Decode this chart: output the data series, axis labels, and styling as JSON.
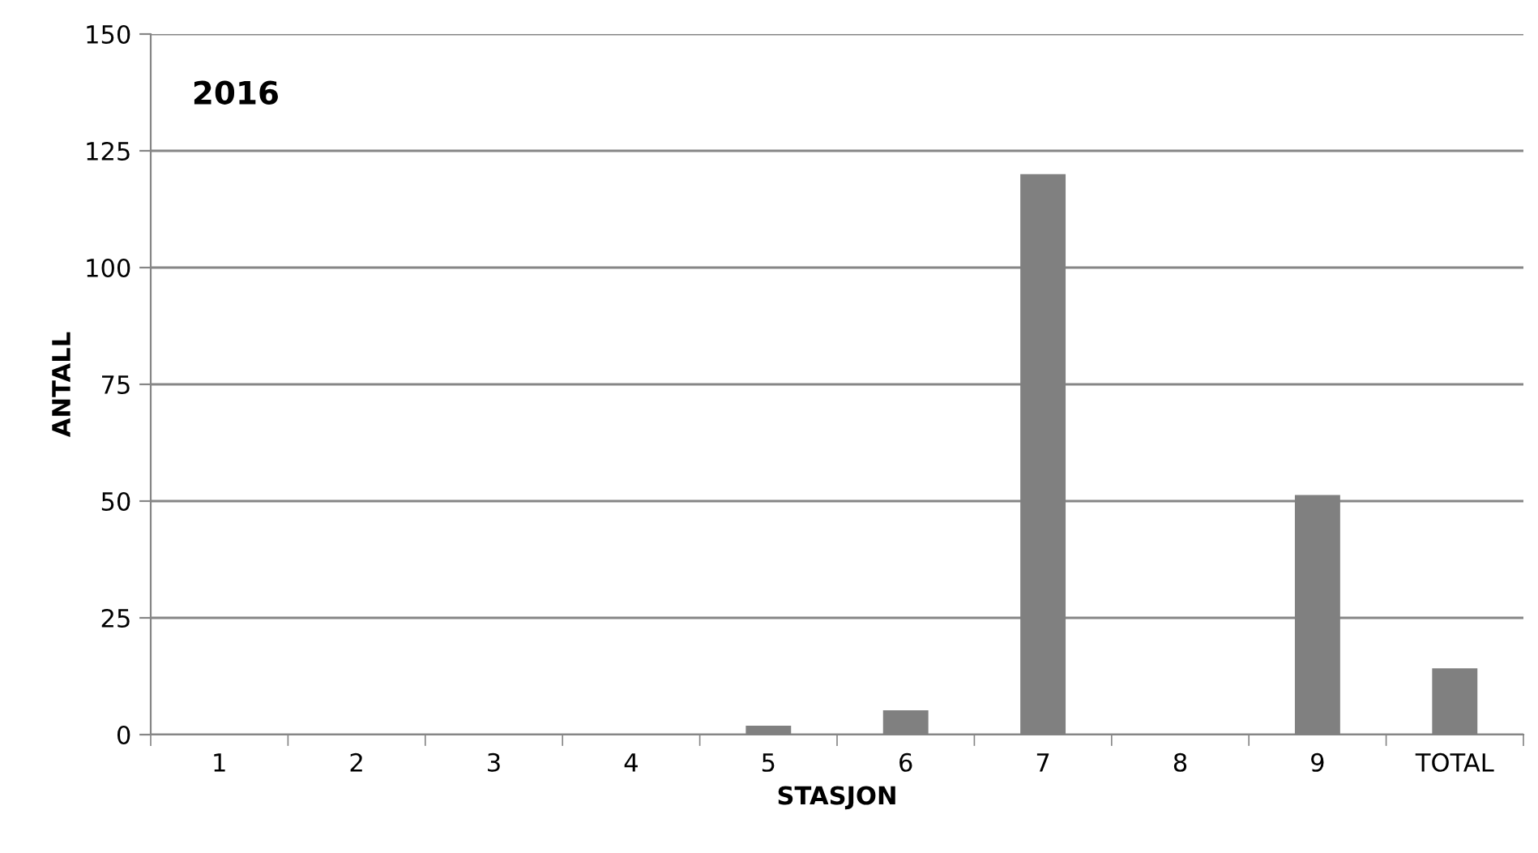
{
  "chart_data": {
    "type": "bar",
    "title": "2016",
    "xlabel": "STASJON",
    "ylabel": "ANTALL",
    "categories": [
      "1",
      "2",
      "3",
      "4",
      "5",
      "6",
      "7",
      "8",
      "9",
      "TOTAL"
    ],
    "values": [
      0,
      0,
      0,
      0,
      1.9,
      5.2,
      120,
      0,
      51.3,
      14.2
    ],
    "color": "#808080",
    "ylim": [
      0,
      150
    ],
    "yticks": [
      0,
      25,
      50,
      75,
      100,
      125,
      150
    ],
    "grid": "y",
    "legend": false
  }
}
